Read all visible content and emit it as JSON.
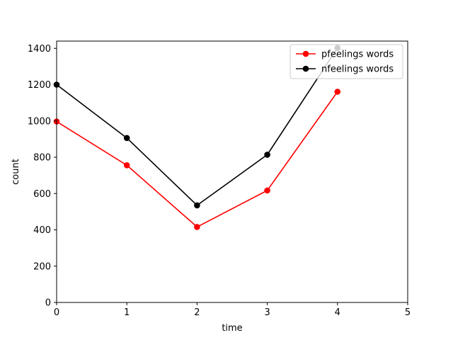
{
  "chart_data": {
    "type": "line",
    "title": "",
    "xlabel": "time",
    "ylabel": "count",
    "xlim": [
      0,
      5
    ],
    "ylim": [
      0,
      1440
    ],
    "x_ticks": [
      "0",
      "1",
      "2",
      "3",
      "4",
      "5"
    ],
    "y_ticks": [
      "0",
      "200",
      "400",
      "600",
      "800",
      "1000",
      "1200",
      "1400"
    ],
    "grid": false,
    "legend_position": "upper right",
    "x": [
      0,
      1,
      2,
      3,
      4
    ],
    "series": [
      {
        "name": "pfeelings words",
        "color": "#ff0000",
        "marker": "circle",
        "values": [
          997,
          756,
          416,
          617,
          1161
        ]
      },
      {
        "name": "nfeelings words",
        "color": "#000000",
        "marker": "circle",
        "values": [
          1200,
          906,
          535,
          814,
          1402
        ]
      }
    ]
  }
}
